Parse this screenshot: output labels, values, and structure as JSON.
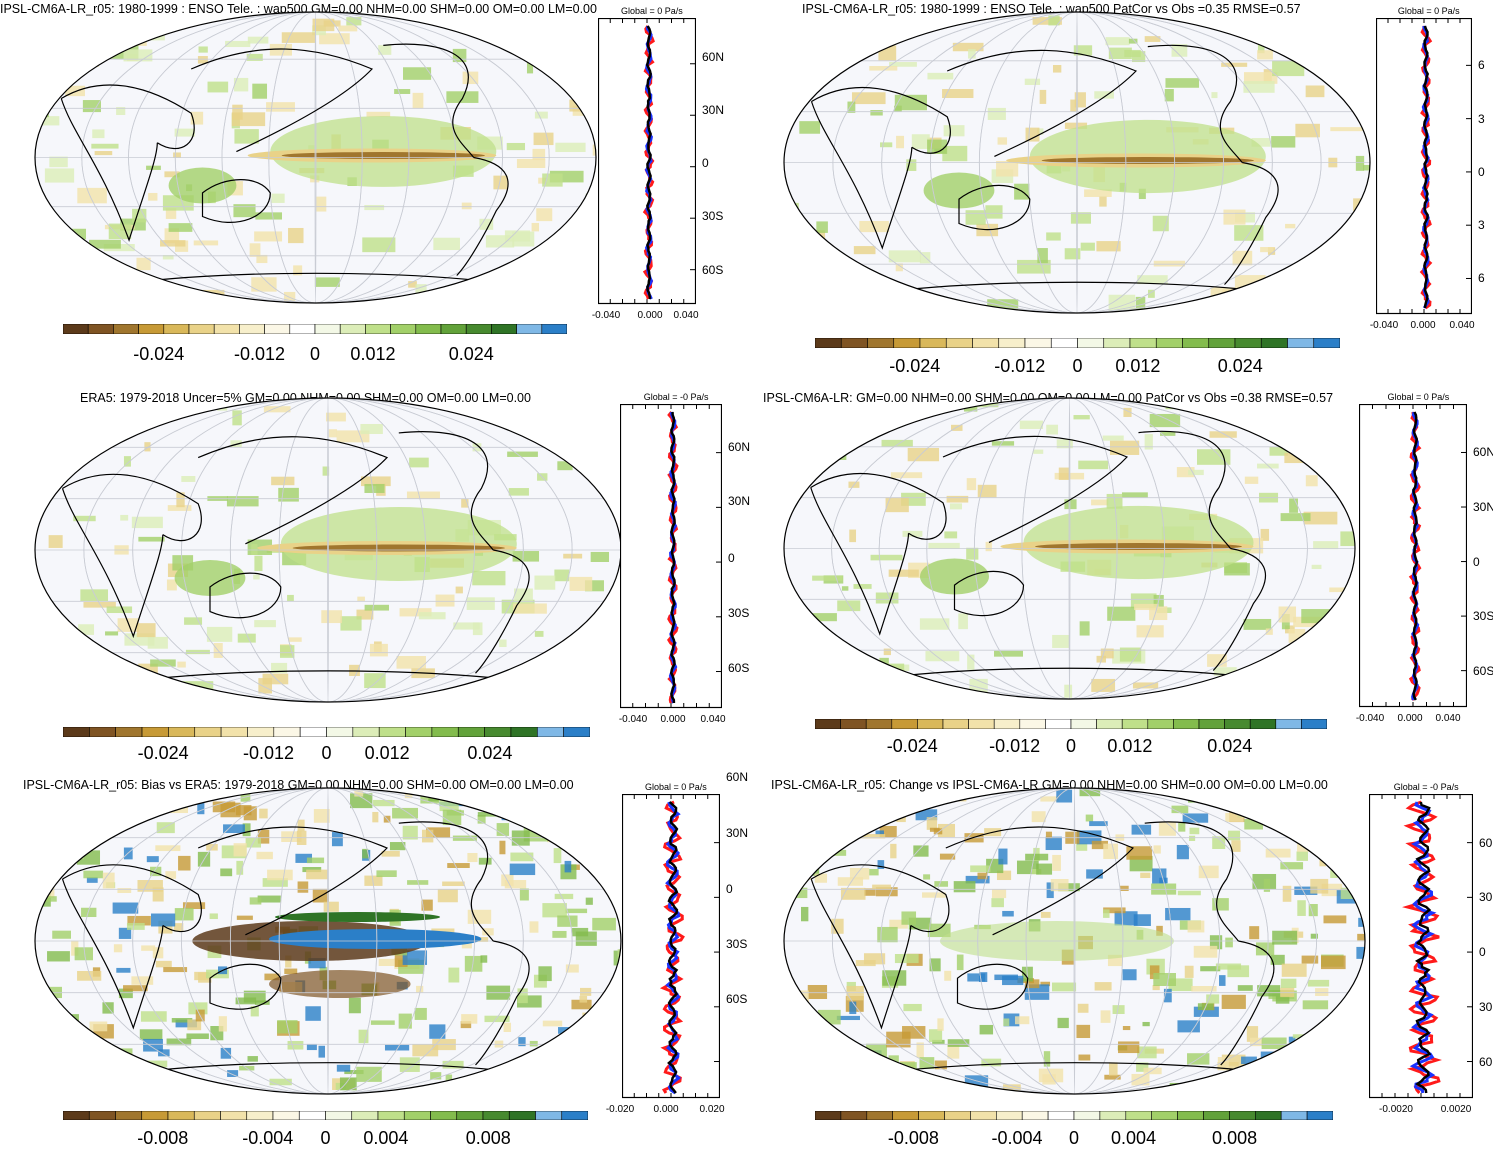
{
  "panels": [
    {
      "id": "p1",
      "title": "IPSL-CM6A-LR_r05: 1980-1999 : ENSO Tele. : wap500 GM=0.00 NHM=0.00 SHM=0.00 OM=0.00 LM=0.00",
      "zonal_title": "Global = 0 Pa/s",
      "xticks": [
        "-0.040",
        "0.000",
        "0.040"
      ],
      "colorbar_labels": [
        "-0.024",
        "-0.012",
        "0",
        "0.012",
        "0.024"
      ]
    },
    {
      "id": "p2",
      "title": "IPSL-CM6A-LR_r05: 1980-1999 : ENSO Tele. : wap500 PatCor vs Obs =0.35 RMSE=0.57",
      "zonal_title": "Global = 0 Pa/s",
      "xticks": [
        "-0.040",
        "0.000",
        "0.040"
      ],
      "colorbar_labels": [
        "-0.024",
        "-0.012",
        "0",
        "0.012",
        "0.024"
      ]
    },
    {
      "id": "p3",
      "title": "ERA5: 1979-2018 Uncer=5% GM=0.00 NHM=0.00 SHM=0.00 OM=0.00 LM=0.00",
      "zonal_title": "Global = -0 Pa/s",
      "xticks": [
        "-0.040",
        "0.000",
        "0.040"
      ],
      "colorbar_labels": [
        "-0.024",
        "-0.012",
        "0",
        "0.012",
        "0.024"
      ]
    },
    {
      "id": "p4",
      "title": "IPSL-CM6A-LR: GM=0.00 NHM=0.00 SHM=0.00 OM=0.00 LM=0.00 PatCor vs Obs =0.38 RMSE=0.57",
      "zonal_title": "Global = 0 Pa/s",
      "xticks": [
        "-0.040",
        "0.000",
        "0.040"
      ],
      "colorbar_labels": [
        "-0.024",
        "-0.012",
        "0",
        "0.012",
        "0.024"
      ]
    },
    {
      "id": "p5",
      "title": "IPSL-CM6A-LR_r05: Bias vs ERA5: 1979-2018 GM=0.00 NHM=0.00 SHM=0.00 OM=0.00 LM=0.00",
      "zonal_title": "Global = 0 Pa/s",
      "xticks": [
        "-0.020",
        "0.000",
        "0.020"
      ],
      "colorbar_labels": [
        "-0.008",
        "-0.004",
        "0",
        "0.004",
        "0.008"
      ]
    },
    {
      "id": "p6",
      "title": "IPSL-CM6A-LR_r05: Change vs IPSL-CM6A-LR GM=0.00 NHM=0.00 SHM=0.00 OM=0.00 LM=0.00",
      "zonal_title": "Global = -0 Pa/s",
      "xticks": [
        "-0.0020",
        "0.0020"
      ],
      "colorbar_labels": [
        "-0.008",
        "-0.004",
        "0",
        "0.004",
        "0.008"
      ]
    }
  ],
  "lat_labels": [
    "60N",
    "30N",
    "0",
    "30S",
    "60S"
  ],
  "lat_labels_truncated": {
    "p2": [
      "6",
      "3",
      "0",
      "3",
      "6"
    ],
    "p4": [
      "60N",
      "30N",
      "0",
      "30S",
      "60S"
    ],
    "p6": [
      "60",
      "30",
      "0",
      "30",
      "60"
    ]
  },
  "colors": {
    "colorbar": [
      "#5c3a1a",
      "#7f5423",
      "#a0762e",
      "#c79a36",
      "#d9b85a",
      "#e9d288",
      "#f2e2aa",
      "#f7efcb",
      "#fbf7e6",
      "#ffffff",
      "#f3f8e6",
      "#dcedb8",
      "#bfe08a",
      "#a2d069",
      "#83bc4d",
      "#62a23a",
      "#478a2f",
      "#2f7426",
      "#7fb8e6",
      "#2b7fc8"
    ],
    "positive_green": "#8cc65a",
    "negative_brown": "#7a4a1e",
    "zonal_red": "#ff1a1a",
    "zonal_blue": "#1a33ff",
    "zonal_black": "#000000"
  }
}
